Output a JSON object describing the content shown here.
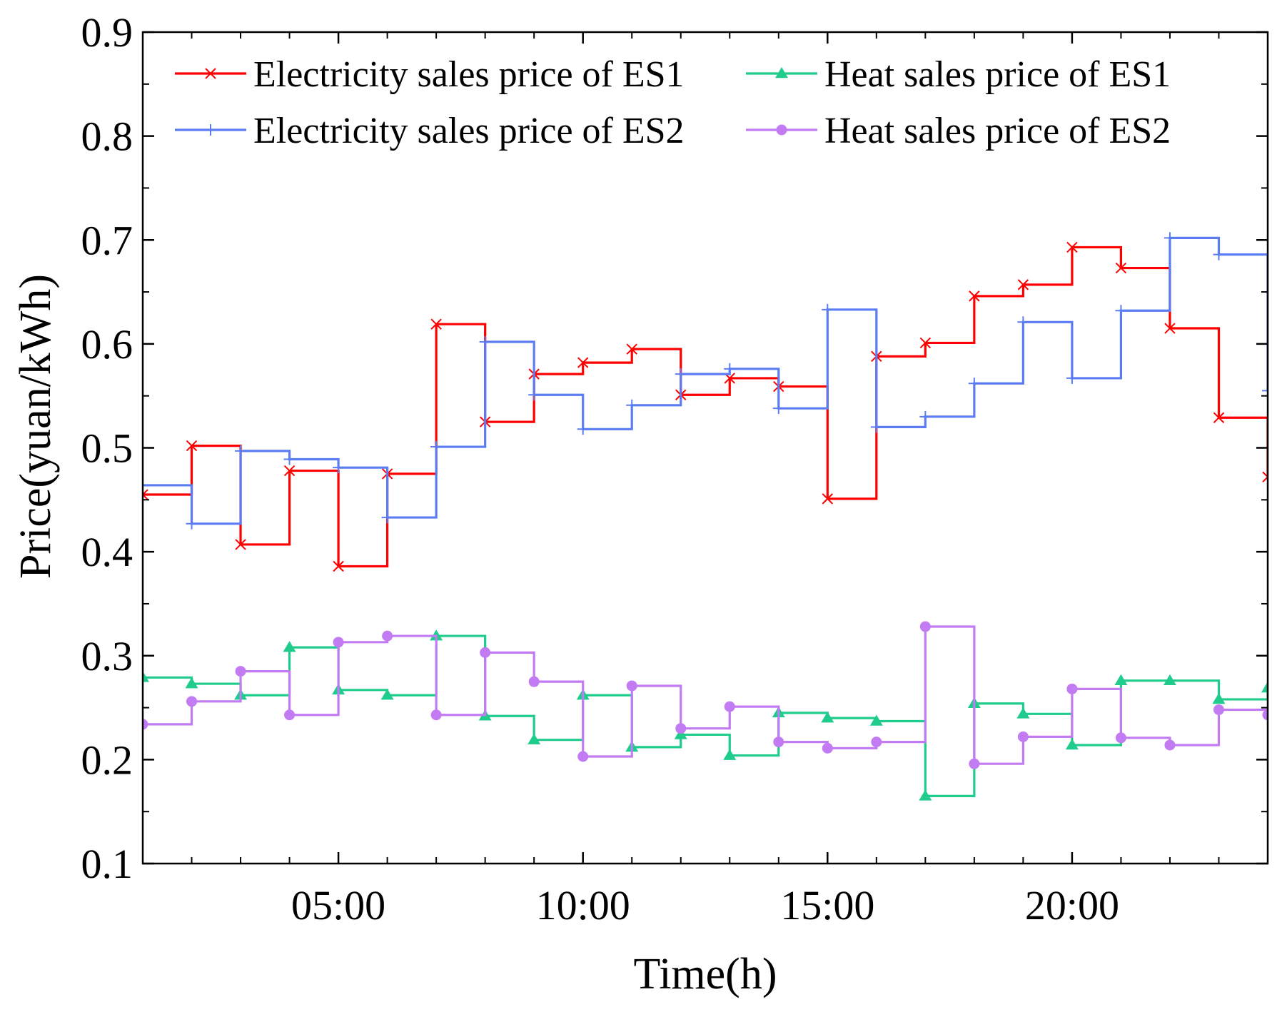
{
  "chart_data": {
    "type": "line",
    "step": "post",
    "title": "",
    "xlabel": "Time(h)",
    "ylabel": "Price(yuan/kWh)",
    "xlim": [
      1,
      24
    ],
    "ylim": [
      0.1,
      0.9
    ],
    "x": [
      1,
      2,
      3,
      4,
      5,
      6,
      7,
      8,
      9,
      10,
      11,
      12,
      13,
      14,
      15,
      16,
      17,
      18,
      19,
      20,
      21,
      22,
      23,
      24
    ],
    "xticks": [
      5,
      10,
      15,
      20
    ],
    "xtick_labels": [
      "05:00",
      "10:00",
      "15:00",
      "20:00"
    ],
    "yticks": [
      0.1,
      0.2,
      0.3,
      0.4,
      0.5,
      0.6,
      0.7,
      0.8,
      0.9
    ],
    "ytick_labels": [
      "0.1",
      "0.2",
      "0.3",
      "0.4",
      "0.5",
      "0.6",
      "0.7",
      "0.8",
      "0.9"
    ],
    "grid": false,
    "legend": "top, two columns",
    "series": [
      {
        "name": "Electricity sales price of ES1",
        "color": "#ff0000",
        "marker": "x",
        "values": [
          0.455,
          0.502,
          0.407,
          0.478,
          0.386,
          0.475,
          0.619,
          0.525,
          0.571,
          0.582,
          0.595,
          0.551,
          0.567,
          0.559,
          0.451,
          0.588,
          0.601,
          0.646,
          0.657,
          0.693,
          0.673,
          0.615,
          0.529,
          0.472
        ]
      },
      {
        "name": "Electricity sales price of ES2",
        "color": "#5b7cf2",
        "marker": "+",
        "values": [
          0.464,
          0.427,
          0.497,
          0.489,
          0.481,
          0.433,
          0.501,
          0.602,
          0.551,
          0.518,
          0.541,
          0.571,
          0.576,
          0.538,
          0.633,
          0.52,
          0.53,
          0.562,
          0.621,
          0.567,
          0.632,
          0.702,
          0.686,
          0.555
        ]
      },
      {
        "name": "Heat sales price of ES1",
        "color": "#1fcc8c",
        "marker": "triangle",
        "values": [
          0.279,
          0.273,
          0.262,
          0.308,
          0.267,
          0.262,
          0.319,
          0.242,
          0.219,
          0.262,
          0.212,
          0.224,
          0.204,
          0.245,
          0.24,
          0.237,
          0.165,
          0.254,
          0.244,
          0.214,
          0.276,
          0.276,
          0.258,
          0.269
        ]
      },
      {
        "name": "Heat sales price of ES2",
        "color": "#c27bf2",
        "marker": "circle",
        "values": [
          0.234,
          0.256,
          0.285,
          0.243,
          0.313,
          0.319,
          0.243,
          0.303,
          0.275,
          0.203,
          0.271,
          0.23,
          0.251,
          0.217,
          0.211,
          0.217,
          0.328,
          0.196,
          0.222,
          0.268,
          0.221,
          0.214,
          0.248,
          0.243
        ]
      }
    ]
  }
}
